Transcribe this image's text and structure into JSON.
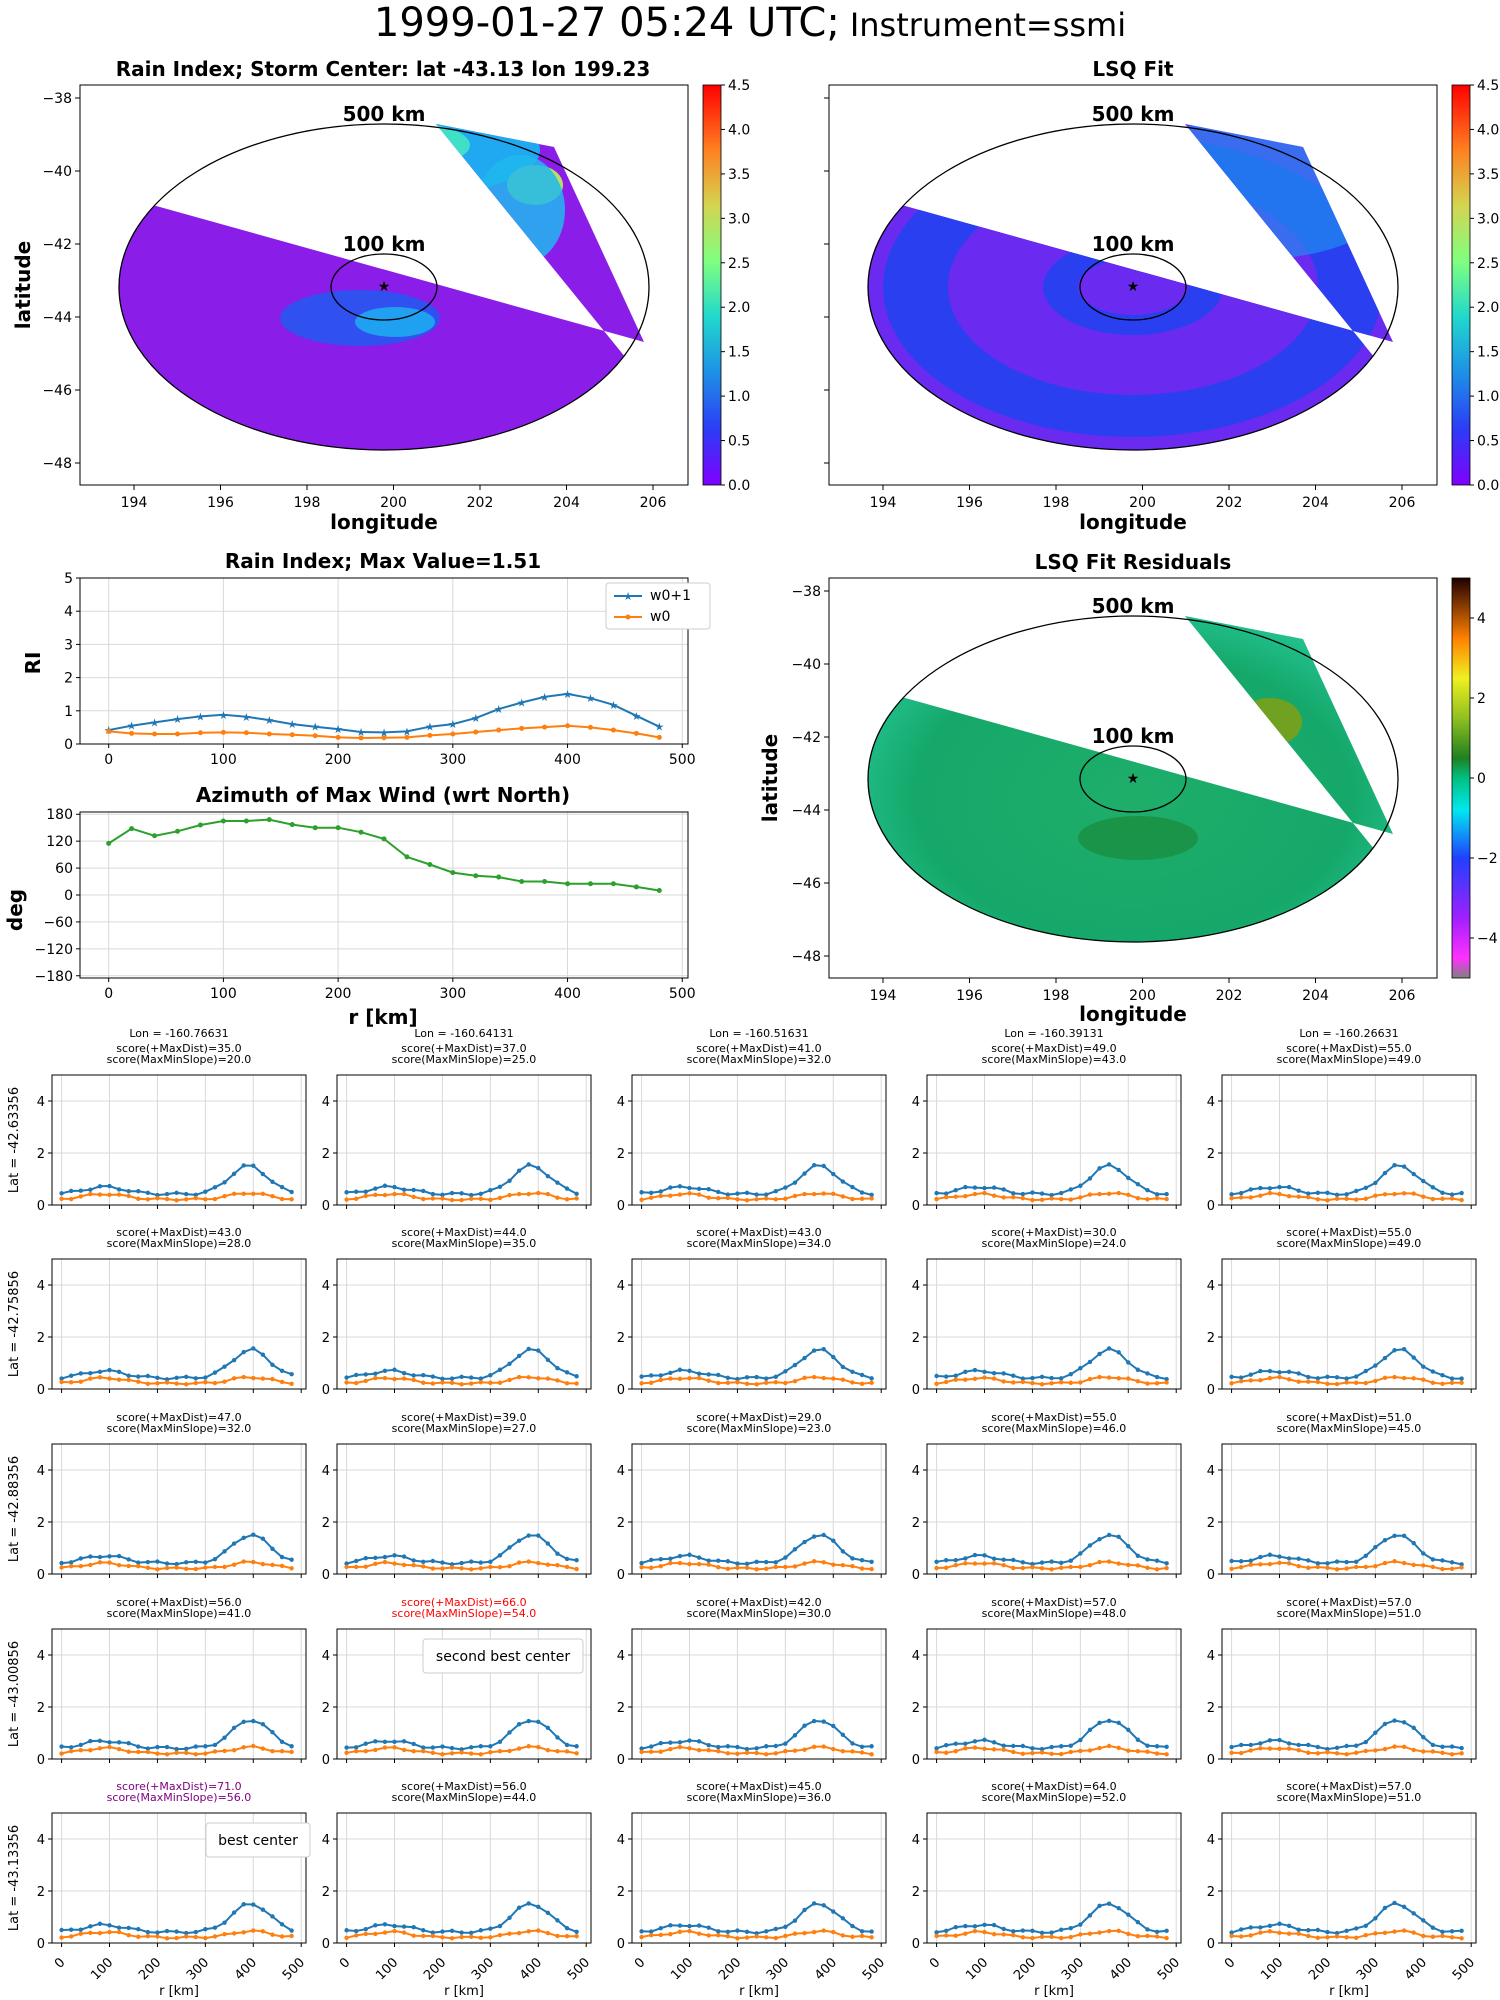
{
  "title": {
    "time": "1999-01-27 05:24 UTC;",
    "instrument": "Instrument=ssmi"
  },
  "colors": {
    "w0p1": "#1f77b4",
    "w0": "#ff7f0e",
    "azimuth": "#2ca02c",
    "grid": "#d9d9d9",
    "highlight_second": "#ff0000",
    "highlight_best": "#800080",
    "rain_background": "#8a1ee8"
  },
  "maps": {
    "rain": {
      "title": "Rain Index; Storm Center: lat -43.13 lon 199.23",
      "xlabel": "longitude",
      "ylabel": "latitude",
      "x_ticks": [
        "194",
        "196",
        "198",
        "200",
        "202",
        "204",
        "206"
      ],
      "y_ticks": [
        "−38",
        "−40",
        "−42",
        "−44",
        "−46",
        "−48"
      ],
      "ring_labels": [
        "500 km",
        "100 km"
      ],
      "colorbar": {
        "colormap": "rainbow",
        "ticks": [
          "0.0",
          "0.5",
          "1.0",
          "1.5",
          "2.0",
          "2.5",
          "3.0",
          "3.5",
          "4.0",
          "4.5"
        ]
      }
    },
    "lsq": {
      "title": "LSQ Fit",
      "x_ticks": [
        "194",
        "196",
        "198",
        "200",
        "202",
        "204",
        "206"
      ],
      "xlabel": "longitude",
      "ring_labels": [
        "500 km",
        "100 km"
      ],
      "colorbar": {
        "colormap": "rainbow",
        "ticks": [
          "0.0",
          "0.5",
          "1.0",
          "1.5",
          "2.0",
          "2.5",
          "3.0",
          "3.5",
          "4.0",
          "4.5"
        ]
      }
    },
    "residuals": {
      "title": "LSQ Fit Residuals",
      "xlabel": "longitude",
      "ylabel": "latitude",
      "x_ticks": [
        "194",
        "196",
        "198",
        "200",
        "202",
        "204",
        "206"
      ],
      "y_ticks": [
        "−38",
        "−40",
        "−42",
        "−44",
        "−46",
        "−48"
      ],
      "ring_labels": [
        "500 km",
        "100 km"
      ],
      "colorbar": {
        "colormap": "diverging",
        "ticks": [
          "4",
          "2",
          "0",
          "−2",
          "−4"
        ]
      }
    }
  },
  "chart_data": [
    {
      "type": "line",
      "title": "Rain Index; Max Value=1.51",
      "ylabel": "RI",
      "x": [
        0,
        20,
        40,
        60,
        80,
        100,
        120,
        140,
        160,
        180,
        200,
        220,
        240,
        260,
        280,
        300,
        320,
        340,
        360,
        380,
        400,
        420,
        440,
        460,
        480
      ],
      "xlim": [
        -25,
        505
      ],
      "ylim": [
        0,
        5
      ],
      "x_ticks": [
        "0",
        "100",
        "200",
        "300",
        "400",
        "500"
      ],
      "y_ticks": [
        "0",
        "1",
        "2",
        "3",
        "4",
        "5"
      ],
      "legend": "top-right",
      "series": [
        {
          "name": "w0+1",
          "values": [
            0.42,
            0.55,
            0.65,
            0.75,
            0.83,
            0.88,
            0.82,
            0.72,
            0.6,
            0.52,
            0.45,
            0.36,
            0.35,
            0.38,
            0.52,
            0.6,
            0.78,
            1.05,
            1.25,
            1.42,
            1.51,
            1.38,
            1.18,
            0.85,
            0.52
          ]
        },
        {
          "name": "w0",
          "values": [
            0.38,
            0.32,
            0.3,
            0.3,
            0.34,
            0.35,
            0.34,
            0.3,
            0.28,
            0.25,
            0.2,
            0.18,
            0.19,
            0.2,
            0.26,
            0.3,
            0.36,
            0.42,
            0.47,
            0.51,
            0.55,
            0.5,
            0.42,
            0.32,
            0.2
          ]
        }
      ]
    },
    {
      "type": "line",
      "title": "Azimuth of Max Wind (wrt North)",
      "xlabel": "r [km]",
      "ylabel": "deg",
      "x": [
        0,
        20,
        40,
        60,
        80,
        100,
        120,
        140,
        160,
        180,
        200,
        220,
        240,
        260,
        280,
        300,
        320,
        340,
        360,
        380,
        400,
        420,
        440,
        460,
        480
      ],
      "xlim": [
        -25,
        505
      ],
      "ylim": [
        -185,
        185
      ],
      "x_ticks": [
        "0",
        "100",
        "200",
        "300",
        "400",
        "500"
      ],
      "y_ticks": [
        "180",
        "120",
        "60",
        "0",
        "−60",
        "−120",
        "−180"
      ],
      "series": [
        {
          "name": "",
          "values": [
            115,
            148,
            132,
            142,
            156,
            165,
            165,
            168,
            157,
            150,
            150,
            140,
            125,
            85,
            68,
            50,
            43,
            40,
            30,
            30,
            25,
            25,
            25,
            18,
            10
          ]
        }
      ]
    },
    {
      "type": "line",
      "title": "grid of small multiples (5 x 5): candidate storm centers",
      "xlabel": "r [km]",
      "x_ticks": [
        "0",
        "100",
        "200",
        "300",
        "400",
        "500"
      ],
      "y_ticks": [
        "0",
        "2",
        "4"
      ],
      "xlim": [
        -20,
        510
      ],
      "ylim": [
        0,
        5
      ],
      "col_lons": [
        "Lon = -160.76631",
        "Lon = -160.64131",
        "Lon = -160.51631",
        "Lon = -160.39131",
        "Lon = -160.26631"
      ],
      "row_lats": [
        "Lat = -42.63356",
        "Lat = -42.75856",
        "Lat = -42.88356",
        "Lat = -43.00856",
        "Lat = -43.13356"
      ],
      "cells": [
        [
          {
            "s1": "score(+MaxDist)=35.0",
            "s2": "score(MaxMinSlope)=20.0",
            "peak": 390
          },
          {
            "s1": "score(+MaxDist)=37.0",
            "s2": "score(MaxMinSlope)=25.0",
            "peak": 385
          },
          {
            "s1": "score(+MaxDist)=41.0",
            "s2": "score(MaxMinSlope)=32.0",
            "peak": 370
          },
          {
            "s1": "score(+MaxDist)=49.0",
            "s2": "score(MaxMinSlope)=43.0",
            "peak": 360
          },
          {
            "s1": "score(+MaxDist)=55.0",
            "s2": "score(MaxMinSlope)=49.0",
            "peak": 350
          }
        ],
        [
          {
            "s1": "score(+MaxDist)=43.0",
            "s2": "score(MaxMinSlope)=28.0",
            "peak": 395
          },
          {
            "s1": "score(+MaxDist)=44.0",
            "s2": "score(MaxMinSlope)=35.0",
            "peak": 385
          },
          {
            "s1": "score(+MaxDist)=43.0",
            "s2": "score(MaxMinSlope)=34.0",
            "peak": 370
          },
          {
            "s1": "score(+MaxDist)=30.0",
            "s2": "score(MaxMinSlope)=24.0",
            "peak": 360
          },
          {
            "s1": "score(+MaxDist)=55.0",
            "s2": "score(MaxMinSlope)=49.0",
            "peak": 350
          }
        ],
        [
          {
            "s1": "score(+MaxDist)=47.0",
            "s2": "score(MaxMinSlope)=32.0",
            "peak": 395
          },
          {
            "s1": "score(+MaxDist)=39.0",
            "s2": "score(MaxMinSlope)=27.0",
            "peak": 385
          },
          {
            "s1": "score(+MaxDist)=29.0",
            "s2": "score(MaxMinSlope)=23.0",
            "peak": 370
          },
          {
            "s1": "score(+MaxDist)=55.0",
            "s2": "score(MaxMinSlope)=46.0",
            "peak": 360
          },
          {
            "s1": "score(+MaxDist)=51.0",
            "s2": "score(MaxMinSlope)=45.0",
            "peak": 345
          }
        ],
        [
          {
            "s1": "score(+MaxDist)=56.0",
            "s2": "score(MaxMinSlope)=41.0",
            "peak": 395
          },
          {
            "s1": "score(+MaxDist)=66.0",
            "s2": "score(MaxMinSlope)=54.0",
            "peak": 385,
            "highlight": "second",
            "label": "second best center"
          },
          {
            "s1": "score(+MaxDist)=42.0",
            "s2": "score(MaxMinSlope)=30.0",
            "peak": 370
          },
          {
            "s1": "score(+MaxDist)=57.0",
            "s2": "score(MaxMinSlope)=48.0",
            "peak": 360
          },
          {
            "s1": "score(+MaxDist)=57.0",
            "s2": "score(MaxMinSlope)=51.0",
            "peak": 345
          }
        ],
        [
          {
            "s1": "score(+MaxDist)=71.0",
            "s2": "score(MaxMinSlope)=56.0",
            "peak": 395,
            "highlight": "best",
            "label": "best center"
          },
          {
            "s1": "score(+MaxDist)=56.0",
            "s2": "score(MaxMinSlope)=44.0",
            "peak": 385
          },
          {
            "s1": "score(+MaxDist)=45.0",
            "s2": "score(MaxMinSlope)=36.0",
            "peak": 370
          },
          {
            "s1": "score(+MaxDist)=64.0",
            "s2": "score(MaxMinSlope)=52.0",
            "peak": 360
          },
          {
            "s1": "score(+MaxDist)=57.0",
            "s2": "score(MaxMinSlope)=51.0",
            "peak": 345
          }
        ]
      ]
    }
  ]
}
